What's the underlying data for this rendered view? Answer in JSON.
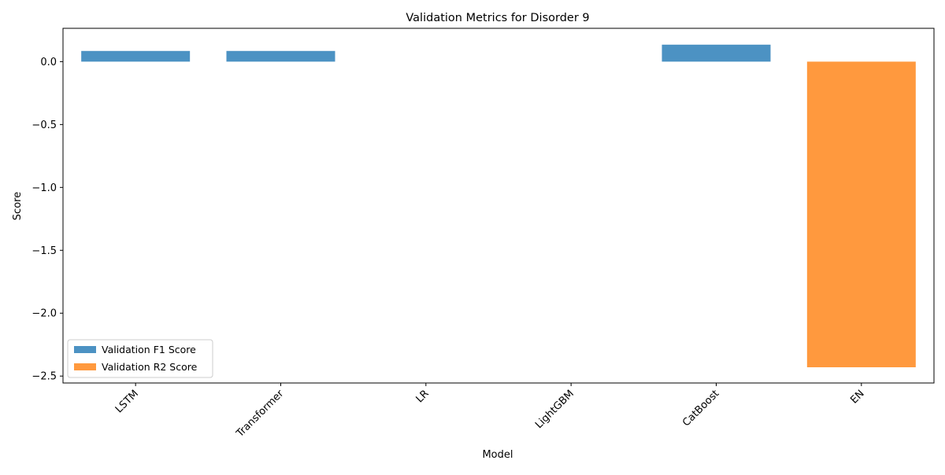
{
  "chart_data": {
    "type": "bar",
    "title": "Validation Metrics for Disorder 9",
    "xlabel": "Model",
    "ylabel": "Score",
    "categories": [
      "LSTM",
      "Transformer",
      "LR",
      "LightGBM",
      "CatBoost",
      "EN"
    ],
    "series": [
      {
        "name": "Validation F1 Score",
        "color": "#1f77b4",
        "values": [
          0.085,
          0.085,
          0.0,
          0.0,
          0.135,
          null
        ]
      },
      {
        "name": "Validation R2 Score",
        "color": "#ff7f0e",
        "values": [
          null,
          null,
          null,
          null,
          null,
          -2.43
        ]
      }
    ],
    "ylim": [
      -2.555,
      0.265
    ],
    "yticks": [
      0.0,
      -0.5,
      -1.0,
      -1.5,
      -2.0,
      -2.5
    ],
    "ytick_labels": [
      "0.0",
      "−0.5",
      "−1.0",
      "−1.5",
      "−2.0",
      "−2.5"
    ],
    "grid": false,
    "legend_position": "lower-left",
    "x_tick_rotation": 45
  }
}
